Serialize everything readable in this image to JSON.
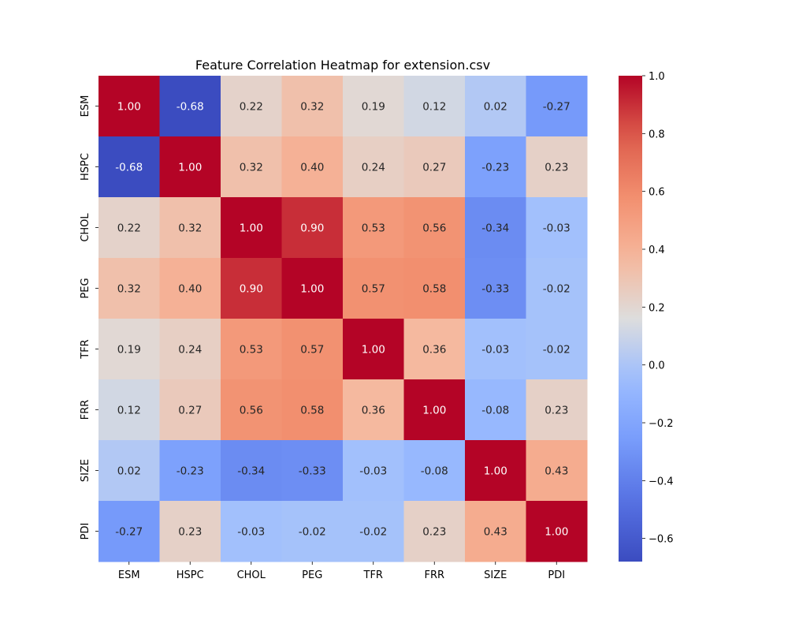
{
  "chart_data": {
    "type": "heatmap",
    "title": "Feature Correlation Heatmap for extension.csv",
    "xlabel": "",
    "ylabel": "",
    "x_labels": [
      "ESM",
      "HSPC",
      "CHOL",
      "PEG",
      "TFR",
      "FRR",
      "SIZE",
      "PDI"
    ],
    "y_labels": [
      "ESM",
      "HSPC",
      "CHOL",
      "PEG",
      "TFR",
      "FRR",
      "SIZE",
      "PDI"
    ],
    "values": [
      [
        1.0,
        -0.68,
        0.22,
        0.32,
        0.19,
        0.12,
        0.02,
        -0.27
      ],
      [
        -0.68,
        1.0,
        0.32,
        0.4,
        0.24,
        0.27,
        -0.23,
        0.23
      ],
      [
        0.22,
        0.32,
        1.0,
        0.9,
        0.53,
        0.56,
        -0.34,
        -0.03
      ],
      [
        0.32,
        0.4,
        0.9,
        1.0,
        0.57,
        0.58,
        -0.33,
        -0.02
      ],
      [
        0.19,
        0.24,
        0.53,
        0.57,
        1.0,
        0.36,
        -0.03,
        -0.02
      ],
      [
        0.12,
        0.27,
        0.56,
        0.58,
        0.36,
        1.0,
        -0.08,
        0.23
      ],
      [
        0.02,
        -0.23,
        -0.34,
        -0.33,
        -0.03,
        -0.08,
        1.0,
        0.43
      ],
      [
        -0.27,
        0.23,
        -0.03,
        -0.02,
        -0.02,
        0.23,
        0.43,
        1.0
      ]
    ],
    "annotation_format": "0.00",
    "colormap": "coolwarm",
    "colorbar": {
      "range": [
        -0.68,
        1.0
      ],
      "ticks": [
        -0.6,
        -0.4,
        -0.2,
        0.0,
        0.2,
        0.4,
        0.6,
        0.8,
        1.0
      ],
      "tick_labels": [
        "−0.6",
        "−0.4",
        "−0.2",
        "0.0",
        "0.2",
        "0.4",
        "0.6",
        "0.8",
        "1.0"
      ]
    },
    "grid": false,
    "legend": "colorbar-right"
  }
}
